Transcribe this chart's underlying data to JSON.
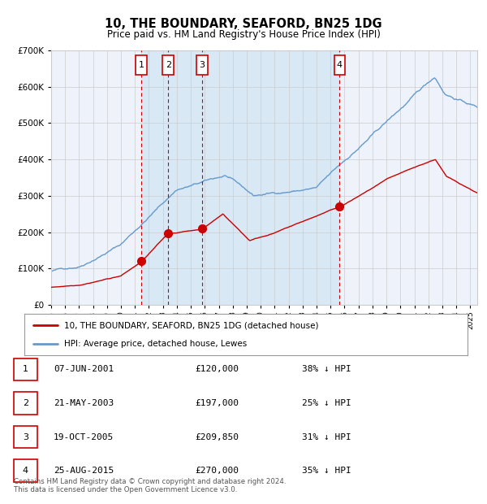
{
  "title": "10, THE BOUNDARY, SEAFORD, BN25 1DG",
  "subtitle": "Price paid vs. HM Land Registry's House Price Index (HPI)",
  "legend_red": "10, THE BOUNDARY, SEAFORD, BN25 1DG (detached house)",
  "legend_blue": "HPI: Average price, detached house, Lewes",
  "transactions": [
    {
      "num": 1,
      "date": "07-JUN-2001",
      "price": 120000,
      "pct": "38%",
      "dir": "↓",
      "year": 2001.44
    },
    {
      "num": 2,
      "date": "21-MAY-2003",
      "price": 197000,
      "pct": "25%",
      "dir": "↓",
      "year": 2003.38
    },
    {
      "num": 3,
      "date": "19-OCT-2005",
      "price": 209850,
      "pct": "31%",
      "dir": "↓",
      "year": 2005.8
    },
    {
      "num": 4,
      "date": "25-AUG-2015",
      "price": 270000,
      "pct": "35%",
      "dir": "↓",
      "year": 2015.65
    }
  ],
  "footer": "Contains HM Land Registry data © Crown copyright and database right 2024.\nThis data is licensed under the Open Government Licence v3.0.",
  "background_color": "#ffffff",
  "plot_bg_color": "#eef2fb",
  "shade_color": "#d8e8f5",
  "red_color": "#cc0000",
  "blue_color": "#6699cc",
  "grid_color": "#cccccc",
  "ylim": [
    0,
    700000
  ],
  "xlim_start": 1995,
  "xlim_end": 2025.5
}
